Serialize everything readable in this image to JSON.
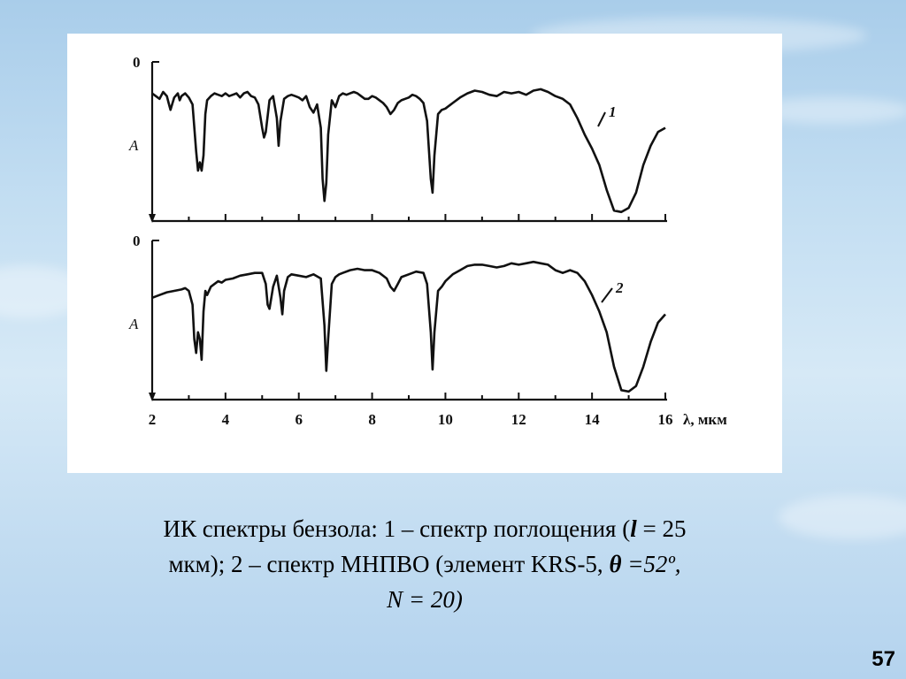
{
  "slide": {
    "page_number": "57",
    "caption": {
      "line1_pre": "ИК спектры бензола: 1 – спектр поглощения (",
      "line1_var": "l",
      "line1_post": " = 25",
      "line2_pre": "мкм); 2 – спектр МНПВО (элемент KRS-5,  ",
      "line2_var": "θ",
      "line2_post": " =52º,",
      "line3": "N = 20)"
    }
  },
  "chart_data": {
    "type": "line",
    "xlabel": "λ, мкм",
    "ylabel": "A",
    "xlim": [
      2,
      16
    ],
    "x_ticks": [
      2,
      4,
      6,
      8,
      10,
      12,
      14,
      16
    ],
    "x_tick_labels": [
      "2",
      "4",
      "6",
      "8",
      "10",
      "12",
      "14",
      "16"
    ],
    "y_zero_label": "0",
    "y_direction": "down",
    "grid": false,
    "legend": "none",
    "panels": [
      {
        "label": "1",
        "ylabel": "A",
        "series": [
          {
            "name": "1",
            "x": [
              2.0,
              2.1,
              2.2,
              2.3,
              2.4,
              2.45,
              2.5,
              2.6,
              2.7,
              2.75,
              2.8,
              2.9,
              3.0,
              3.1,
              3.2,
              3.25,
              3.3,
              3.35,
              3.4,
              3.45,
              3.5,
              3.6,
              3.7,
              3.8,
              3.9,
              4.0,
              4.1,
              4.2,
              4.3,
              4.4,
              4.5,
              4.6,
              4.7,
              4.8,
              4.9,
              5.0,
              5.05,
              5.1,
              5.2,
              5.3,
              5.4,
              5.45,
              5.5,
              5.6,
              5.7,
              5.8,
              5.9,
              6.0,
              6.1,
              6.2,
              6.3,
              6.4,
              6.5,
              6.6,
              6.65,
              6.7,
              6.75,
              6.8,
              6.9,
              7.0,
              7.1,
              7.2,
              7.3,
              7.4,
              7.5,
              7.6,
              7.7,
              7.8,
              7.9,
              8.0,
              8.1,
              8.2,
              8.3,
              8.4,
              8.5,
              8.6,
              8.7,
              8.8,
              8.9,
              9.0,
              9.1,
              9.2,
              9.3,
              9.4,
              9.5,
              9.6,
              9.65,
              9.7,
              9.8,
              9.9,
              10.0,
              10.2,
              10.4,
              10.6,
              10.8,
              11.0,
              11.2,
              11.4,
              11.6,
              11.8,
              12.0,
              12.2,
              12.4,
              12.6,
              12.8,
              13.0,
              13.2,
              13.4,
              13.6,
              13.8,
              14.0,
              14.2,
              14.4,
              14.6,
              14.8,
              15.0,
              15.2,
              15.4,
              15.6,
              15.8,
              16.0
            ],
            "y": [
              0.1,
              0.12,
              0.14,
              0.09,
              0.12,
              0.17,
              0.22,
              0.13,
              0.1,
              0.15,
              0.12,
              0.1,
              0.13,
              0.18,
              0.52,
              0.66,
              0.6,
              0.66,
              0.55,
              0.25,
              0.15,
              0.12,
              0.1,
              0.11,
              0.12,
              0.1,
              0.12,
              0.11,
              0.1,
              0.13,
              0.1,
              0.09,
              0.12,
              0.13,
              0.18,
              0.35,
              0.42,
              0.38,
              0.15,
              0.12,
              0.28,
              0.48,
              0.3,
              0.14,
              0.12,
              0.11,
              0.12,
              0.13,
              0.15,
              0.12,
              0.2,
              0.24,
              0.18,
              0.35,
              0.72,
              0.88,
              0.75,
              0.4,
              0.15,
              0.2,
              0.12,
              0.1,
              0.11,
              0.1,
              0.09,
              0.1,
              0.12,
              0.14,
              0.14,
              0.12,
              0.13,
              0.15,
              0.17,
              0.2,
              0.25,
              0.22,
              0.17,
              0.15,
              0.14,
              0.13,
              0.11,
              0.12,
              0.14,
              0.17,
              0.3,
              0.72,
              0.82,
              0.55,
              0.25,
              0.22,
              0.21,
              0.17,
              0.13,
              0.1,
              0.08,
              0.09,
              0.11,
              0.12,
              0.09,
              0.1,
              0.09,
              0.11,
              0.08,
              0.07,
              0.09,
              0.12,
              0.14,
              0.18,
              0.28,
              0.4,
              0.5,
              0.62,
              0.8,
              0.95,
              0.96,
              0.93,
              0.82,
              0.62,
              0.48,
              0.38,
              0.35
            ]
          }
        ]
      },
      {
        "label": "2",
        "ylabel": "A",
        "series": [
          {
            "name": "2",
            "x": [
              2.0,
              2.2,
              2.4,
              2.6,
              2.8,
              2.9,
              3.0,
              3.1,
              3.15,
              3.2,
              3.25,
              3.3,
              3.35,
              3.4,
              3.45,
              3.5,
              3.6,
              3.7,
              3.8,
              3.9,
              4.0,
              4.2,
              4.4,
              4.6,
              4.8,
              5.0,
              5.1,
              5.15,
              5.2,
              5.3,
              5.4,
              5.5,
              5.55,
              5.6,
              5.7,
              5.8,
              6.0,
              6.2,
              6.4,
              6.6,
              6.7,
              6.75,
              6.8,
              6.9,
              7.0,
              7.1,
              7.2,
              7.4,
              7.6,
              7.8,
              8.0,
              8.2,
              8.4,
              8.5,
              8.6,
              8.7,
              8.8,
              9.0,
              9.2,
              9.4,
              9.5,
              9.6,
              9.65,
              9.7,
              9.8,
              9.9,
              10.0,
              10.2,
              10.4,
              10.6,
              10.8,
              11.0,
              11.2,
              11.4,
              11.6,
              11.8,
              12.0,
              12.2,
              12.4,
              12.6,
              12.8,
              13.0,
              13.2,
              13.4,
              13.6,
              13.8,
              14.0,
              14.2,
              14.4,
              14.6,
              14.8,
              15.0,
              15.2,
              15.4,
              15.6,
              15.8,
              16.0
            ],
            "y": [
              0.3,
              0.28,
              0.26,
              0.25,
              0.24,
              0.23,
              0.25,
              0.35,
              0.6,
              0.7,
              0.55,
              0.6,
              0.75,
              0.4,
              0.25,
              0.28,
              0.22,
              0.2,
              0.18,
              0.19,
              0.17,
              0.16,
              0.14,
              0.13,
              0.12,
              0.12,
              0.2,
              0.35,
              0.38,
              0.22,
              0.14,
              0.3,
              0.42,
              0.25,
              0.15,
              0.13,
              0.14,
              0.15,
              0.13,
              0.16,
              0.5,
              0.83,
              0.6,
              0.2,
              0.15,
              0.13,
              0.12,
              0.1,
              0.09,
              0.1,
              0.1,
              0.12,
              0.16,
              0.22,
              0.25,
              0.2,
              0.15,
              0.13,
              0.11,
              0.12,
              0.2,
              0.55,
              0.82,
              0.55,
              0.25,
              0.22,
              0.18,
              0.13,
              0.1,
              0.07,
              0.06,
              0.06,
              0.07,
              0.08,
              0.07,
              0.05,
              0.06,
              0.05,
              0.04,
              0.05,
              0.06,
              0.1,
              0.12,
              0.1,
              0.12,
              0.18,
              0.28,
              0.4,
              0.55,
              0.8,
              0.97,
              0.98,
              0.94,
              0.8,
              0.62,
              0.48,
              0.42
            ]
          }
        ]
      }
    ]
  }
}
